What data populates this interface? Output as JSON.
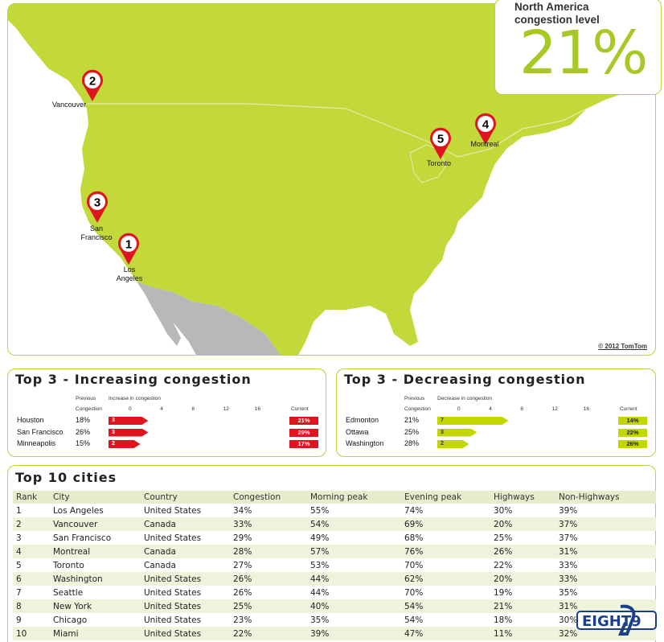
{
  "stat": {
    "label_line1": "North America",
    "label_line2": "congestion level",
    "value": "21%"
  },
  "map": {
    "copyright": "© 2012 TomTom",
    "pins": [
      {
        "rank": "1",
        "label1": "Los",
        "label2": "Angeles"
      },
      {
        "rank": "2",
        "label1": "Vancouver",
        "label2": ""
      },
      {
        "rank": "3",
        "label1": "San",
        "label2": "Francisco"
      },
      {
        "rank": "4",
        "label1": "Montreal",
        "label2": ""
      },
      {
        "rank": "5",
        "label1": "Toronto",
        "label2": ""
      }
    ]
  },
  "increasing": {
    "title": "Top 3 - Increasing congestion",
    "prev_header1": "Previous",
    "prev_header2": "Congestion",
    "axis_title": "Increase in congestion",
    "current_header": "Current",
    "ticks": [
      "0",
      "4",
      "8",
      "12",
      "16"
    ],
    "rows": [
      {
        "city": "Houston",
        "previous": "18%",
        "change": 3,
        "change_label": "3",
        "current": "21%"
      },
      {
        "city": "San Francisco",
        "previous": "26%",
        "change": 3,
        "change_label": "3",
        "current": "29%"
      },
      {
        "city": "Minneapolis",
        "previous": "15%",
        "change": 2,
        "change_label": "2",
        "current": "17%"
      }
    ],
    "color": "#e0141e"
  },
  "decreasing": {
    "title": "Top 3 - Decreasing congestion",
    "prev_header1": "Previous",
    "prev_header2": "Congestion",
    "axis_title": "Decrease in congestion",
    "current_header": "Current",
    "ticks": [
      "0",
      "4",
      "8",
      "12",
      "16"
    ],
    "rows": [
      {
        "city": "Edmonton",
        "previous": "21%",
        "change": 7,
        "change_label": "7",
        "current": "14%"
      },
      {
        "city": "Ottawa",
        "previous": "25%",
        "change": 3,
        "change_label": "3",
        "current": "22%"
      },
      {
        "city": "Washington",
        "previous": "28%",
        "change": 2,
        "change_label": "2",
        "current": "26%"
      }
    ],
    "color": "#c4d600"
  },
  "top10": {
    "title": "Top 10 cities",
    "headers": [
      "Rank",
      "City",
      "Country",
      "Congestion",
      "Morning peak",
      "Evening peak",
      "Highways",
      "Non-Highways"
    ],
    "rows": [
      [
        "1",
        "Los Angeles",
        "United States",
        "34%",
        "55%",
        "74%",
        "30%",
        "39%"
      ],
      [
        "2",
        "Vancouver",
        "Canada",
        "33%",
        "54%",
        "69%",
        "20%",
        "37%"
      ],
      [
        "3",
        "San Francisco",
        "United States",
        "29%",
        "49%",
        "68%",
        "25%",
        "37%"
      ],
      [
        "4",
        "Montreal",
        "Canada",
        "28%",
        "57%",
        "76%",
        "26%",
        "31%"
      ],
      [
        "5",
        "Toronto",
        "Canada",
        "27%",
        "53%",
        "70%",
        "22%",
        "33%"
      ],
      [
        "6",
        "Washington",
        "United States",
        "26%",
        "44%",
        "62%",
        "20%",
        "33%"
      ],
      [
        "7",
        "Seattle",
        "United States",
        "26%",
        "44%",
        "70%",
        "19%",
        "35%"
      ],
      [
        "8",
        "New York",
        "United States",
        "25%",
        "40%",
        "54%",
        "21%",
        "31%"
      ],
      [
        "9",
        "Chicago",
        "United States",
        "23%",
        "35%",
        "54%",
        "18%",
        "30%"
      ],
      [
        "10",
        "Miami",
        "United States",
        "22%",
        "39%",
        "47%",
        "11%",
        "32%"
      ]
    ]
  },
  "watermark": {
    "text": "EIGHT9"
  },
  "colors": {
    "accent": "#b9d23e",
    "land": "#c3d93a",
    "mexico": "#b8b8b8",
    "pin": "#e0141e"
  }
}
